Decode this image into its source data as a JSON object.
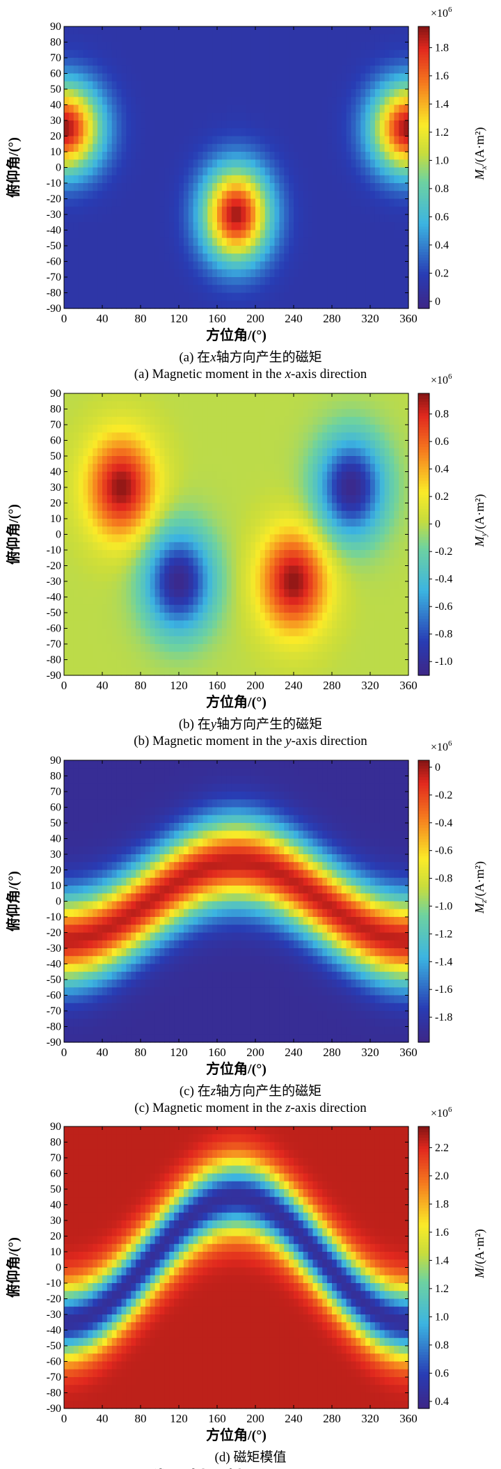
{
  "chart_data": [
    {
      "id": "a",
      "type": "heatmap",
      "xlabel": "方位角/(°)",
      "ylabel": "俯仰角/(°)",
      "xlim": [
        0,
        360
      ],
      "ylim": [
        -90,
        90
      ],
      "xticks": [
        0,
        40,
        80,
        120,
        160,
        200,
        240,
        280,
        320,
        360
      ],
      "yticks": [
        -90,
        -80,
        -70,
        -60,
        -50,
        -40,
        -30,
        -20,
        -10,
        0,
        10,
        20,
        30,
        40,
        50,
        60,
        70,
        80,
        90
      ],
      "colorbar": {
        "label_main": "M",
        "label_sub": "x",
        "label_unit": "/(A·m²)",
        "multiplier": "×10",
        "multiplier_exp": "6",
        "min": -0.05,
        "max": 1.95,
        "ticks": [
          0,
          0.2,
          0.4,
          0.6,
          0.8,
          1.0,
          1.2,
          1.4,
          1.6,
          1.8
        ],
        "tick_labels": [
          "0",
          "0.2",
          "0.4",
          "0.6",
          "0.8",
          "1.0",
          "1.2",
          "1.4",
          "1.6",
          "1.8"
        ]
      },
      "caption_cn_pre": "(a) 在",
      "caption_cn_var": "x",
      "caption_cn_post": "轴方向产生的磁矩",
      "caption_en_pre": "(a) Magnetic moment in the ",
      "caption_en_var": "x",
      "caption_en_post": "-axis direction",
      "field": {
        "base": 0.12,
        "features": [
          {
            "x": 0,
            "y": 25,
            "sx": 38,
            "sy": 28,
            "a": 1.8
          },
          {
            "x": 360,
            "y": 25,
            "sx": 38,
            "sy": 28,
            "a": 1.8
          },
          {
            "x": 180,
            "y": -30,
            "sx": 35,
            "sy": 30,
            "a": 1.78
          }
        ]
      }
    },
    {
      "id": "b",
      "type": "heatmap",
      "xlabel": "方位角/(°)",
      "ylabel": "俯仰角/(°)",
      "xlim": [
        0,
        360
      ],
      "ylim": [
        -90,
        90
      ],
      "xticks": [
        0,
        40,
        80,
        120,
        160,
        200,
        240,
        280,
        320,
        360
      ],
      "yticks": [
        -90,
        -80,
        -70,
        -60,
        -50,
        -40,
        -30,
        -20,
        -10,
        0,
        10,
        20,
        30,
        40,
        50,
        60,
        70,
        80,
        90
      ],
      "colorbar": {
        "label_main": "M",
        "label_sub": "y",
        "label_unit": "/(A·m²)",
        "multiplier": "×10",
        "multiplier_exp": "6",
        "min": -1.1,
        "max": 0.95,
        "ticks": [
          -1.0,
          -0.8,
          -0.6,
          -0.4,
          -0.2,
          0,
          0.2,
          0.4,
          0.6,
          0.8
        ],
        "tick_labels": [
          "-1.0",
          "-0.8",
          "-0.6",
          "-0.4",
          "-0.2",
          "0",
          "0.2",
          "0.4",
          "0.6",
          "0.8"
        ]
      },
      "caption_cn_pre": "(b) 在",
      "caption_cn_var": "y",
      "caption_cn_post": "轴方向产生的磁矩",
      "caption_en_pre": "(b) Magnetic moment in the ",
      "caption_en_var": "y",
      "caption_en_post": "-axis direction",
      "field": {
        "base": 0.0,
        "features": [
          {
            "x": 60,
            "y": 30,
            "sx": 35,
            "sy": 32,
            "a": 0.93
          },
          {
            "x": 240,
            "y": -30,
            "sx": 35,
            "sy": 32,
            "a": 0.93
          },
          {
            "x": 120,
            "y": -30,
            "sx": 35,
            "sy": 32,
            "a": -1.07
          },
          {
            "x": 300,
            "y": 30,
            "sx": 35,
            "sy": 32,
            "a": -1.07
          }
        ]
      }
    },
    {
      "id": "c",
      "type": "heatmap",
      "xlabel": "方位角/(°)",
      "ylabel": "俯仰角/(°)",
      "xlim": [
        0,
        360
      ],
      "ylim": [
        -90,
        90
      ],
      "xticks": [
        0,
        40,
        80,
        120,
        160,
        200,
        240,
        280,
        320,
        360
      ],
      "yticks": [
        -90,
        -80,
        -70,
        -60,
        -50,
        -40,
        -30,
        -20,
        -10,
        0,
        10,
        20,
        30,
        40,
        50,
        60,
        70,
        80,
        90
      ],
      "colorbar": {
        "label_main": "M",
        "label_sub": "z",
        "label_unit": "/(A·m²)",
        "multiplier": "×10",
        "multiplier_exp": "6",
        "min": -1.98,
        "max": 0.05,
        "ticks": [
          -1.8,
          -1.6,
          -1.4,
          -1.2,
          -1.0,
          -0.8,
          -0.6,
          -0.4,
          -0.2,
          0
        ],
        "tick_labels": [
          "-1.8",
          "-1.6",
          "-1.4",
          "-1.2",
          "-1.0",
          "-0.8",
          "-0.6",
          "-0.4",
          "-0.2",
          "0"
        ]
      },
      "caption_cn_pre": "(c) 在",
      "caption_cn_var": "z",
      "caption_cn_post": "轴方向产生的磁矩",
      "caption_en_pre": "(c) Magnetic moment in the ",
      "caption_en_var": "z",
      "caption_en_post": "-axis direction",
      "field": {
        "band": {
          "center_amp": 25,
          "width": 30,
          "low": -1.9,
          "high": -0.05
        }
      }
    },
    {
      "id": "d",
      "type": "heatmap",
      "xlabel": "方位角/(°)",
      "ylabel": "俯仰角/(°)",
      "xlim": [
        0,
        360
      ],
      "ylim": [
        -90,
        90
      ],
      "xticks": [
        0,
        40,
        80,
        120,
        160,
        200,
        240,
        280,
        320,
        360
      ],
      "yticks": [
        -90,
        -80,
        -70,
        -60,
        -50,
        -40,
        -30,
        -20,
        -10,
        0,
        10,
        20,
        30,
        40,
        50,
        60,
        70,
        80,
        90
      ],
      "colorbar": {
        "label_main": "M",
        "label_sub": "",
        "label_unit": "/(A·m²)",
        "multiplier": "×10",
        "multiplier_exp": "6",
        "min": 0.35,
        "max": 2.35,
        "ticks": [
          0.4,
          0.6,
          0.8,
          1.0,
          1.2,
          1.4,
          1.6,
          1.8,
          2.0,
          2.2
        ],
        "tick_labels": [
          "0.4",
          "0.6",
          "0.8",
          "1.0",
          "1.2",
          "1.4",
          "1.6",
          "1.8",
          "2.0",
          "2.2"
        ]
      },
      "caption_cn_pre": "(d) 磁矩模值",
      "caption_cn_var": "",
      "caption_cn_post": "",
      "caption_en_pre": "(d) Modulus of the magnetic moment",
      "caption_en_var": "",
      "caption_en_post": "",
      "field": {
        "trough": {
          "center_amp": 40,
          "phase": 180,
          "offset": 5,
          "width": 22,
          "low": 0.45,
          "high": 2.25
        }
      }
    }
  ]
}
